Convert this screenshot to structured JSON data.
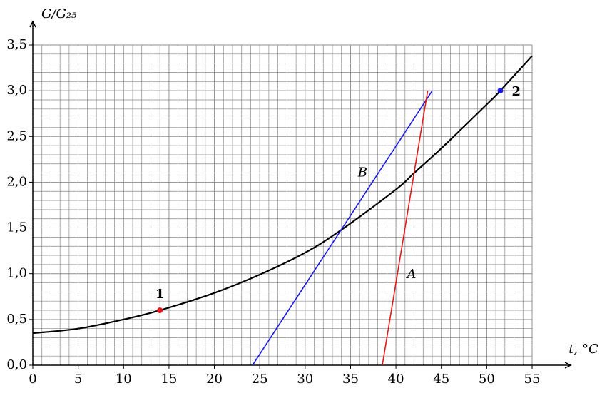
{
  "chart_data": {
    "type": "line",
    "x_label": "t, °C",
    "y_label": "G/G₂₅",
    "xlim": [
      0,
      55
    ],
    "ylim": [
      0,
      3.5
    ],
    "xticks": [
      0,
      5,
      10,
      15,
      20,
      25,
      30,
      35,
      40,
      45,
      50,
      55
    ],
    "yticks": [
      {
        "value": 0,
        "label": "0,0"
      },
      {
        "value": 0.5,
        "label": "0,5"
      },
      {
        "value": 1,
        "label": "1,0"
      },
      {
        "value": 1.5,
        "label": "1,5"
      },
      {
        "value": 2,
        "label": "2,0"
      },
      {
        "value": 2.5,
        "label": "2,5"
      },
      {
        "value": 3,
        "label": "3,0"
      },
      {
        "value": 3.5,
        "label": "3,5"
      }
    ],
    "grid": true,
    "x_minor_step": 1,
    "y_minor_step": 0.1,
    "series": [
      {
        "color": "#000000",
        "x": [
          0,
          5,
          10,
          14,
          20,
          25,
          30,
          34,
          40,
          42,
          45,
          50,
          51.5,
          55
        ],
        "values": [
          0.35,
          0.4,
          0.5,
          0.6,
          0.79,
          0.99,
          1.23,
          1.48,
          1.92,
          2.1,
          2.37,
          2.85,
          3.0,
          3.38
        ]
      },
      {
        "label": "B",
        "color": "#1a1ae6",
        "x": [
          24.2,
          44
        ],
        "values": [
          0,
          3.0
        ]
      },
      {
        "label": "A",
        "color": "#e61a1a",
        "x": [
          38.5,
          43.5
        ],
        "values": [
          0,
          3.0
        ]
      }
    ],
    "points": [
      {
        "label": "1",
        "color": "#e61a1a",
        "x": 14,
        "y": 0.6
      },
      {
        "label": "2",
        "color": "#1a1ae6",
        "x": 51.5,
        "y": 3.0
      }
    ]
  }
}
